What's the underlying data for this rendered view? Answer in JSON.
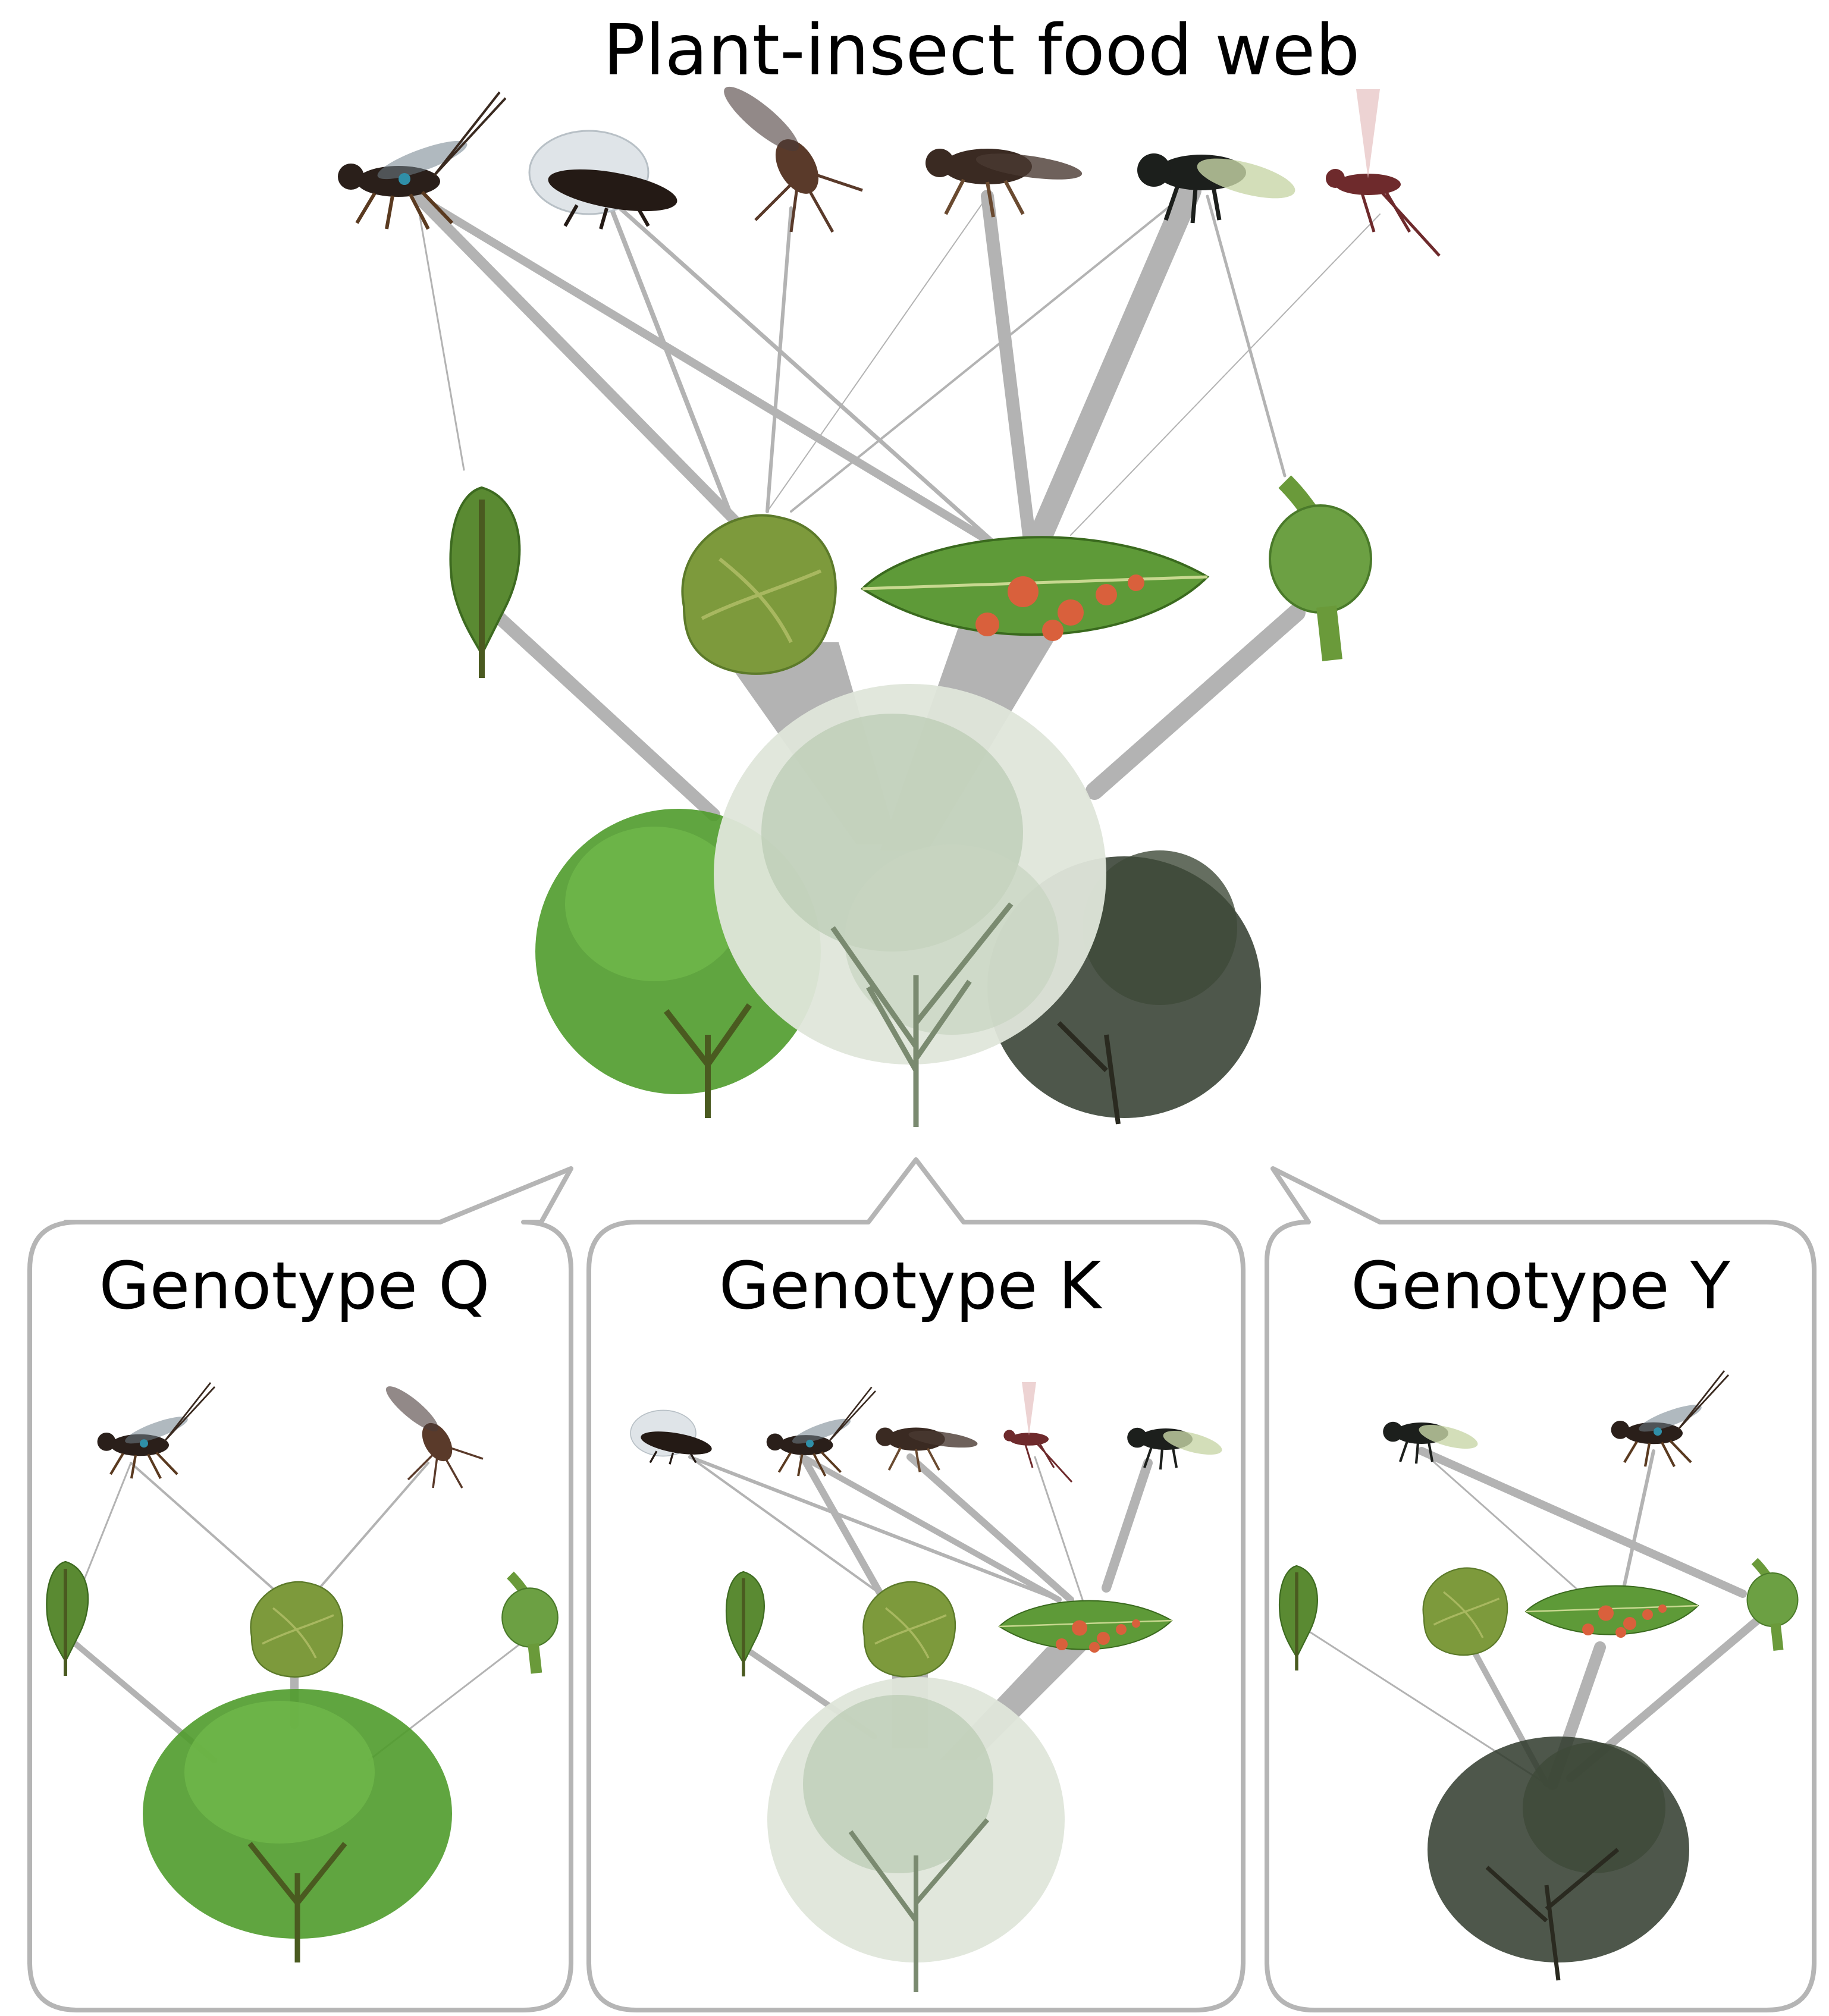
{
  "title": "Plant-insect food web",
  "panels": [
    {
      "id": "Q",
      "label": "Genotype Q"
    },
    {
      "id": "K",
      "label": "Genotype K"
    },
    {
      "id": "Y",
      "label": "Genotype Y"
    }
  ],
  "colors": {
    "link": "#b3b3b3",
    "panel_border": "#b5b5b5",
    "leaf": "#4f8f2f",
    "gall": "#d9603c",
    "parasitoid_dark": "#2a1f1a",
    "parasitoid_red": "#7a2a2a",
    "shrub_q": "#4f9b2b",
    "shrub_k": "#a8bfa0",
    "shrub_y": "#2f3a2c"
  },
  "icons": {
    "parasitoids": [
      "wasp-icon",
      "winged-wasp-icon",
      "long-legged-fly-icon",
      "brown-wasp-icon",
      "black-fly-icon",
      "red-wasp-icon"
    ],
    "herbivores": [
      "leaf-roll-icon",
      "bud-gall-icon",
      "leaf-gall-icon",
      "stem-gall-icon"
    ],
    "plants": [
      "shrub-q-icon",
      "shrub-k-icon",
      "shrub-y-icon"
    ]
  }
}
